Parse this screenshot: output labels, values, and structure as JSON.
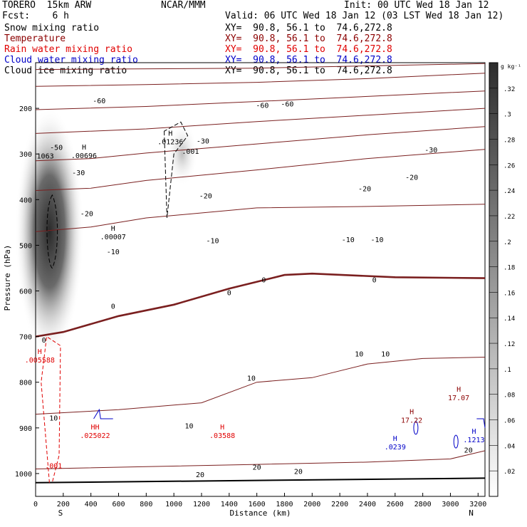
{
  "header": {
    "model": "TORERO  15km ARW",
    "org": "NCAR/MMM",
    "init": "Init: 00 UTC Wed 18 Jan 12",
    "fcst": "Fcst:    6 h",
    "valid": "Valid: 06 UTC Wed 18 Jan 12 (03 LST Wed 18 Jan 12)"
  },
  "fields": [
    {
      "name": "Snow mixing ratio",
      "xy": "XY=  90.8, 56.1 to  74.6,272.8",
      "color": "#000000"
    },
    {
      "name": "Temperature",
      "xy": "XY=  90.8, 56.1 to  74.6,272.8",
      "color": "#8b0000"
    },
    {
      "name": "Rain water mixing ratio",
      "xy": "XY=  90.8, 56.1 to  74.6,272.8",
      "color": "#e00000"
    },
    {
      "name": "Cloud water mixing ratio",
      "xy": "XY=  90.8, 56.1 to  74.6,272.8",
      "color": "#0000c8"
    },
    {
      "name": "Cloud ice mixing ratio",
      "xy": "XY=  90.8, 56.1 to  74.6,272.8",
      "color": "#000000"
    }
  ],
  "chart_data": {
    "type": "contour",
    "xlabel": "Distance (km)",
    "ylabel": "Pressure (hPa)",
    "xlim": [
      0,
      3250
    ],
    "ylim": [
      1050,
      100
    ],
    "xticks": [
      0,
      200,
      400,
      600,
      800,
      1000,
      1200,
      1400,
      1600,
      1800,
      2000,
      2200,
      2400,
      2600,
      2800,
      3000,
      3200
    ],
    "yticks": [
      200,
      300,
      400,
      500,
      600,
      700,
      800,
      900,
      1000
    ],
    "x_end_labels": {
      "start": "S",
      "end": "N"
    },
    "colorbar": {
      "unit": "g kg⁻¹",
      "ticks": [
        ".32",
        ".3",
        ".28",
        ".26",
        ".24",
        ".22",
        ".2",
        ".18",
        ".16",
        ".14",
        ".12",
        ".1",
        ".08",
        ".06",
        ".04",
        ".02"
      ],
      "top_value": 0.34
    },
    "temperature_contours": [
      {
        "level": -70,
        "points": [
          [
            0,
            115
          ],
          [
            1600,
            112
          ],
          [
            2400,
            107
          ],
          [
            3250,
            102
          ]
        ]
      },
      {
        "level": -60,
        "points": [
          [
            0,
            152
          ],
          [
            800,
            148
          ],
          [
            1600,
            143
          ],
          [
            2400,
            135
          ],
          [
            3250,
            123
          ]
        ]
      },
      {
        "level": -50,
        "points": [
          [
            0,
            203
          ],
          [
            800,
            196
          ],
          [
            1600,
            185
          ],
          [
            2400,
            174
          ],
          [
            3250,
            162
          ]
        ]
      },
      {
        "level": -40,
        "points": [
          [
            0,
            255
          ],
          [
            800,
            245
          ],
          [
            1600,
            229
          ],
          [
            2400,
            215
          ],
          [
            3250,
            200
          ]
        ]
      },
      {
        "level": -30,
        "points": [
          [
            0,
            315
          ],
          [
            400,
            310
          ],
          [
            800,
            298
          ],
          [
            1600,
            278
          ],
          [
            2400,
            258
          ],
          [
            3250,
            240
          ]
        ]
      },
      {
        "level": -20,
        "points": [
          [
            0,
            380
          ],
          [
            400,
            375
          ],
          [
            800,
            358
          ],
          [
            1600,
            335
          ],
          [
            2400,
            310
          ],
          [
            3250,
            290
          ]
        ]
      },
      {
        "level": -10,
        "points": [
          [
            0,
            470
          ],
          [
            400,
            460
          ],
          [
            800,
            440
          ],
          [
            1600,
            418
          ],
          [
            2400,
            415
          ],
          [
            3250,
            410
          ]
        ]
      },
      {
        "level": 0,
        "points": [
          [
            0,
            700
          ],
          [
            200,
            690
          ],
          [
            600,
            655
          ],
          [
            1000,
            630
          ],
          [
            1400,
            595
          ],
          [
            1800,
            565
          ],
          [
            2000,
            562
          ],
          [
            2600,
            570
          ],
          [
            3250,
            572
          ]
        ]
      },
      {
        "level": 10,
        "points": [
          [
            0,
            870
          ],
          [
            600,
            860
          ],
          [
            1200,
            845
          ],
          [
            1600,
            800
          ],
          [
            2000,
            790
          ],
          [
            2400,
            760
          ],
          [
            2800,
            748
          ],
          [
            3250,
            745
          ]
        ]
      },
      {
        "level": 20,
        "points": [
          [
            0,
            990
          ],
          [
            800,
            985
          ],
          [
            1600,
            980
          ],
          [
            2400,
            975
          ],
          [
            3000,
            968
          ],
          [
            3250,
            950
          ]
        ]
      }
    ],
    "temperature_labels": [
      {
        "text": "-60",
        "x": 460,
        "p": 183
      },
      {
        "text": "-60",
        "x": 1640,
        "p": 193
      },
      {
        "text": "-60",
        "x": 1820,
        "p": 190
      },
      {
        "text": "-50",
        "x": 150,
        "p": 285
      },
      {
        "text": "-30",
        "x": 1210,
        "p": 271
      },
      {
        "text": "-30",
        "x": 2860,
        "p": 290
      },
      {
        "text": "-30",
        "x": 310,
        "p": 340
      },
      {
        "text": "-20",
        "x": 370,
        "p": 430
      },
      {
        "text": "-20",
        "x": 1230,
        "p": 391
      },
      {
        "text": "-20",
        "x": 2380,
        "p": 375
      },
      {
        "text": "-20",
        "x": 2720,
        "p": 350
      },
      {
        "text": "-10",
        "x": 560,
        "p": 513
      },
      {
        "text": "-10",
        "x": 1280,
        "p": 489
      },
      {
        "text": "-10",
        "x": 2260,
        "p": 487
      },
      {
        "text": "-10",
        "x": 2470,
        "p": 487
      },
      {
        "text": "0",
        "x": 560,
        "p": 633
      },
      {
        "text": "0",
        "x": 1400,
        "p": 603
      },
      {
        "text": "0",
        "x": 1650,
        "p": 575
      },
      {
        "text": "0",
        "x": 2450,
        "p": 575
      },
      {
        "text": "0",
        "x": 60,
        "p": 707
      },
      {
        "text": "10",
        "x": 2340,
        "p": 737
      },
      {
        "text": "10",
        "x": 2530,
        "p": 737
      },
      {
        "text": "10",
        "x": 1560,
        "p": 790
      },
      {
        "text": "10",
        "x": 130,
        "p": 878
      },
      {
        "text": "10",
        "x": 1110,
        "p": 895
      },
      {
        "text": "20",
        "x": 3130,
        "p": 948
      },
      {
        "text": "20",
        "x": 1600,
        "p": 985
      },
      {
        "text": "20",
        "x": 1190,
        "p": 1002
      },
      {
        "text": "20",
        "x": 1900,
        "p": 995
      }
    ],
    "extrema": [
      {
        "text": "H",
        "value": ".00696",
        "x": 350,
        "p": 290,
        "color": "#000000"
      },
      {
        "text": "H",
        "value": ".01236",
        "x": 975,
        "p": 260,
        "color": "#000000"
      },
      {
        "text": "H",
        "value": ".00007",
        "x": 560,
        "p": 468,
        "color": "#000000"
      },
      {
        "text": "H",
        "value": ".005588",
        "x": 30,
        "p": 738,
        "color": "#e00000"
      },
      {
        "text": "H",
        "value": "17.07",
        "x": 3060,
        "p": 821,
        "color": "#8b0000"
      },
      {
        "text": "H",
        "value": "17.22",
        "x": 2720,
        "p": 870,
        "color": "#8b0000"
      },
      {
        "text": "HH",
        "value": ".025022",
        "x": 430,
        "p": 903,
        "color": "#e00000"
      },
      {
        "text": "H",
        "value": ".03588",
        "x": 1350,
        "p": 903,
        "color": "#e00000"
      },
      {
        "text": "H",
        "value": ".0239",
        "x": 2600,
        "p": 928,
        "color": "#0000c8"
      },
      {
        "text": "H",
        "value": ".1213",
        "x": 3170,
        "p": 913,
        "color": "#0000c8"
      }
    ],
    "extra_labels": [
      {
        "text": "1063",
        "x": 70,
        "p": 310,
        "color": "#000000"
      },
      {
        "text": ".001",
        "x": 1120,
        "p": 300,
        "color": "#000000"
      },
      {
        "text": ".001",
        "x": 130,
        "p": 988,
        "color": "#e00000"
      }
    ],
    "snow_max_region": {
      "x_center": 100,
      "p_center": 470,
      "max_value": 0.32
    }
  }
}
